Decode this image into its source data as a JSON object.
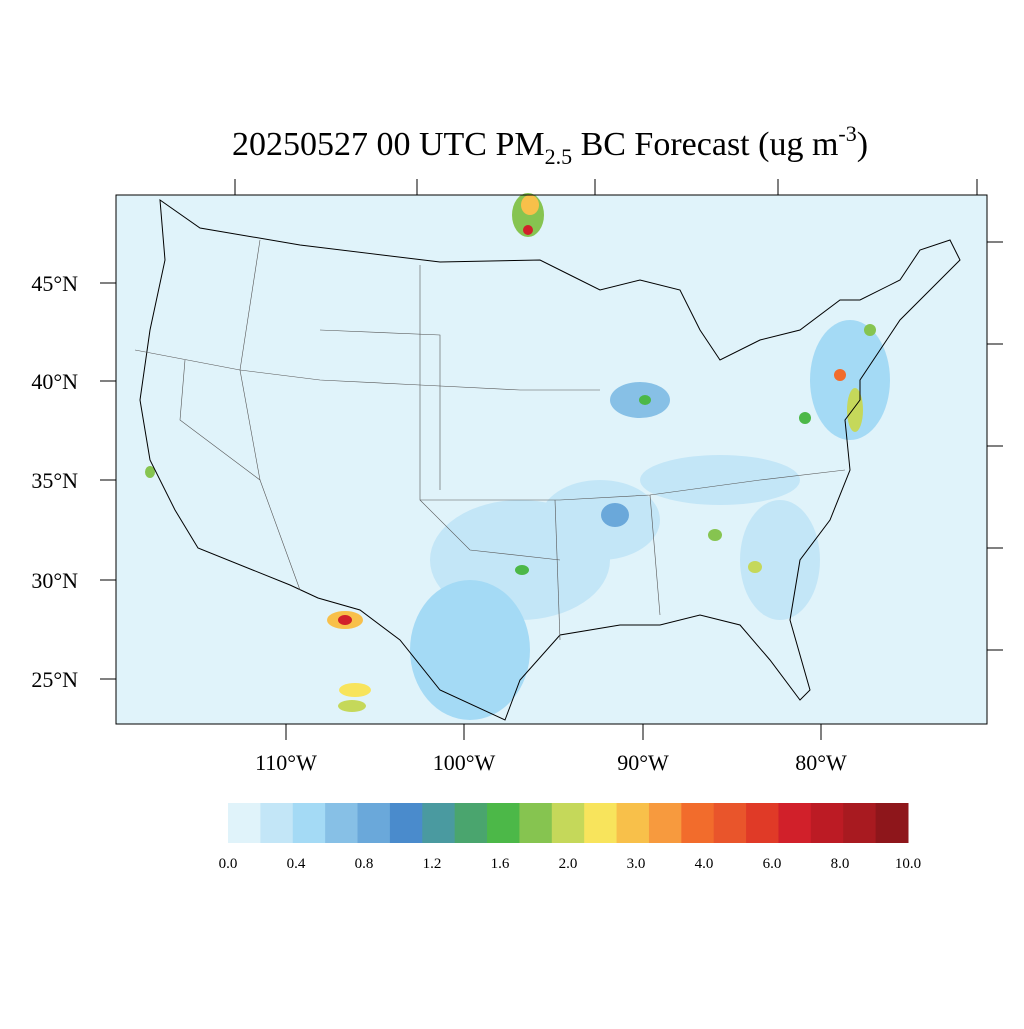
{
  "title": {
    "prefix": "20250527 00 UTC PM",
    "sub": "2.5",
    "middle": " BC Forecast (ug m",
    "sup": "-3",
    "suffix": ")"
  },
  "lat_labels": [
    "45°N",
    "40°N",
    "35°N",
    "30°N",
    "25°N"
  ],
  "lon_labels": [
    "110°W",
    "100°W",
    "90°W",
    "80°W"
  ],
  "colorbar": {
    "colors": [
      "#e0f3fa",
      "#c3e6f7",
      "#a4daf5",
      "#87c0e6",
      "#6aa8da",
      "#4a8bcc",
      "#4a9aa0",
      "#4aa56e",
      "#4cb848",
      "#86c450",
      "#c5d85a",
      "#f8e45c",
      "#f8c04a",
      "#f79a3e",
      "#f26c2c",
      "#e9552b",
      "#e03a27",
      "#d1202a",
      "#bc1b24",
      "#a81a20",
      "#8e161b"
    ],
    "labels": [
      "0.0",
      "0.4",
      "0.8",
      "1.2",
      "1.6",
      "2.0",
      "3.0",
      "4.0",
      "6.0",
      "8.0",
      "10.0"
    ]
  }
}
